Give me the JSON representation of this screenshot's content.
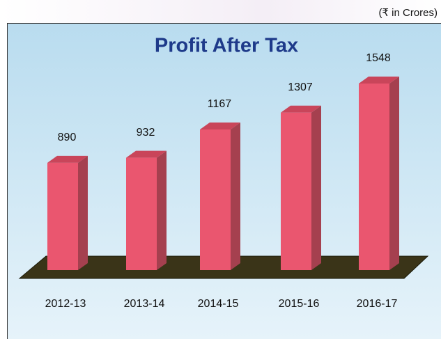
{
  "chart_data": {
    "type": "bar",
    "title": "Profit After Tax",
    "subtitle": "(₹ in Crores)",
    "categories": [
      "2012-13",
      "2013-14",
      "2014-15",
      "2015-16",
      "2016-17"
    ],
    "values": [
      890,
      932,
      1167,
      1307,
      1548
    ],
    "color": "#ea566f"
  }
}
